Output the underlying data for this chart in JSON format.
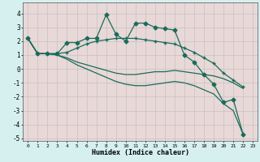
{
  "xlabel": "Humidex (Indice chaleur)",
  "xlim": [
    -0.5,
    23.5
  ],
  "ylim": [
    -5.2,
    4.8
  ],
  "yticks": [
    -5,
    -4,
    -3,
    -2,
    -1,
    0,
    1,
    2,
    3,
    4
  ],
  "xticks": [
    0,
    1,
    2,
    3,
    4,
    5,
    6,
    7,
    8,
    9,
    10,
    11,
    12,
    13,
    14,
    15,
    16,
    17,
    18,
    19,
    20,
    21,
    22,
    23
  ],
  "bg_color": "#d6f0f0",
  "grid_color": "#b0d8d0",
  "line_color": "#1a6b5a",
  "series": [
    [
      2.2,
      1.1,
      1.1,
      1.1,
      1.9,
      1.9,
      2.2,
      2.2,
      3.9,
      2.5,
      2.0,
      3.3,
      3.3,
      3.0,
      2.9,
      2.8,
      1.0,
      0.5,
      -0.4,
      -1.1,
      -2.4,
      -2.2,
      -4.7
    ],
    [
      2.2,
      1.1,
      1.1,
      1.1,
      1.2,
      1.5,
      1.8,
      2.0,
      2.1,
      2.2,
      2.2,
      2.2,
      2.1,
      2.0,
      1.9,
      1.8,
      1.5,
      1.2,
      0.8,
      0.4,
      -0.3,
      -0.8,
      -1.3
    ],
    [
      2.2,
      1.1,
      1.1,
      1.0,
      0.8,
      0.5,
      0.3,
      0.1,
      -0.1,
      -0.3,
      -0.4,
      -0.4,
      -0.3,
      -0.2,
      -0.2,
      -0.1,
      -0.2,
      -0.3,
      -0.4,
      -0.5,
      -0.7,
      -1.0,
      -1.4
    ],
    [
      2.2,
      1.1,
      1.1,
      1.0,
      0.7,
      0.3,
      0.0,
      -0.3,
      -0.6,
      -0.9,
      -1.1,
      -1.2,
      -1.2,
      -1.1,
      -1.0,
      -0.9,
      -1.0,
      -1.2,
      -1.5,
      -1.8,
      -2.5,
      -3.0,
      -4.7
    ]
  ],
  "series_markers": [
    "D",
    "+",
    null,
    null
  ],
  "marker_sizes": [
    3,
    4,
    0,
    0
  ]
}
